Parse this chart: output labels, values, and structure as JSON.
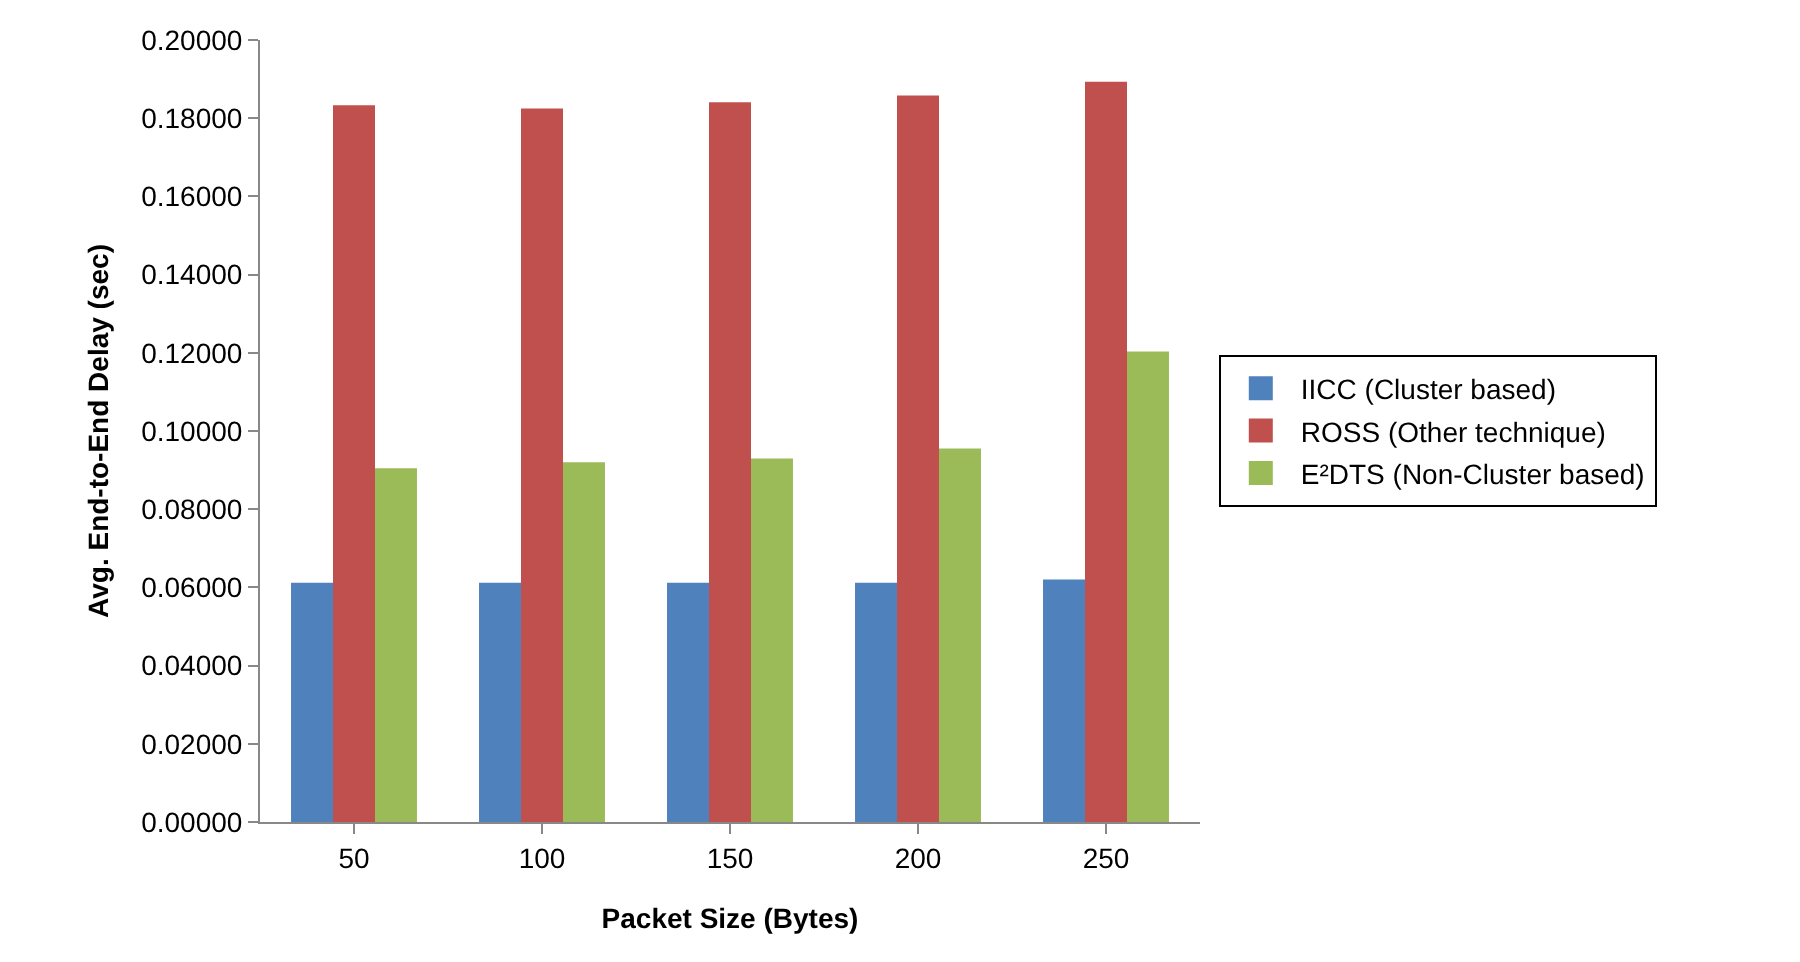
{
  "chart_data": {
    "type": "bar",
    "xlabel": "Packet Size (Bytes)",
    "ylabel": "Avg. End-to-End Delay (sec)",
    "categories": [
      "50",
      "100",
      "150",
      "200",
      "250"
    ],
    "series": [
      {
        "name": "IICC (Cluster based)",
        "color": "#4f81bd",
        "values": [
          0.0612,
          0.0612,
          0.0612,
          0.0612,
          0.062
        ]
      },
      {
        "name": "ROSS (Other technique)",
        "color": "#c0504d",
        "values": [
          0.1833,
          0.1825,
          0.1841,
          0.1858,
          0.1893
        ]
      },
      {
        "name": "E²DTS (Non-Cluster based)",
        "color": "#9bbb59",
        "values": [
          0.0905,
          0.092,
          0.093,
          0.0955,
          0.1203
        ]
      }
    ],
    "ylim": [
      0,
      0.2
    ],
    "yticks": [
      {
        "value": 0,
        "label": "0.00000"
      },
      {
        "value": 0.02,
        "label": "0.02000"
      },
      {
        "value": 0.04,
        "label": "0.04000"
      },
      {
        "value": 0.06,
        "label": "0.06000"
      },
      {
        "value": 0.08,
        "label": "0.08000"
      },
      {
        "value": 0.1,
        "label": "0.10000"
      },
      {
        "value": 0.12,
        "label": "0.12000"
      },
      {
        "value": 0.14,
        "label": "0.14000"
      },
      {
        "value": 0.16,
        "label": "0.16000"
      },
      {
        "value": 0.18,
        "label": "0.18000"
      },
      {
        "value": 0.2,
        "label": "0.20000"
      }
    ],
    "grid": false,
    "legend": "right"
  }
}
